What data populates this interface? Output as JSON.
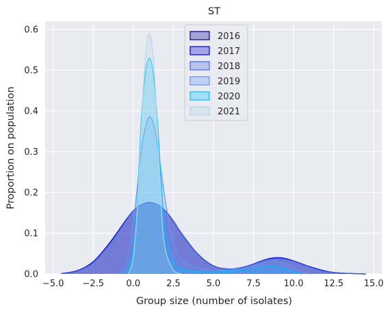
{
  "chart_data": {
    "type": "area",
    "title": "ST",
    "xlabel": "Group size (number of isolates)",
    "ylabel": "Proportion on population",
    "xlim": [
      -5.5,
      15.5
    ],
    "ylim": [
      0,
      0.62
    ],
    "xticks": [
      -5.0,
      -2.5,
      0.0,
      2.5,
      5.0,
      7.5,
      10.0,
      12.5,
      15.0
    ],
    "xtick_labels": [
      "−5.0",
      "−2.5",
      "0.0",
      "2.5",
      "5.0",
      "7.5",
      "10.0",
      "12.5",
      "15.0"
    ],
    "yticks": [
      0.0,
      0.1,
      0.2,
      0.3,
      0.4,
      0.5,
      0.6
    ],
    "ytick_labels": [
      "0.0",
      "0.1",
      "0.2",
      "0.3",
      "0.4",
      "0.5",
      "0.6"
    ],
    "grid": true,
    "legend_position": "top-center",
    "series": [
      {
        "name": "2016",
        "color": "#00008b",
        "x": [
          -4.5,
          -3.5,
          -2.5,
          -1.5,
          -0.5,
          0.0,
          0.5,
          1.0,
          1.5,
          2.0,
          2.5,
          3.0,
          4.0,
          5.0,
          6.0,
          7.0,
          8.0,
          8.5,
          9.0,
          9.5,
          10.0,
          11.0,
          12.0,
          13.0,
          14.5
        ],
        "y": [
          0.001,
          0.008,
          0.03,
          0.075,
          0.13,
          0.155,
          0.17,
          0.175,
          0.17,
          0.155,
          0.13,
          0.1,
          0.05,
          0.02,
          0.012,
          0.018,
          0.032,
          0.037,
          0.038,
          0.037,
          0.032,
          0.018,
          0.007,
          0.002,
          0.0
        ]
      },
      {
        "name": "2017",
        "color": "#0000cd",
        "x": [
          -4.5,
          -3.5,
          -2.5,
          -1.5,
          -0.5,
          0.0,
          0.5,
          1.0,
          1.5,
          2.0,
          2.5,
          3.0,
          4.0,
          5.0,
          6.0,
          7.0,
          8.0,
          8.5,
          9.0,
          9.5,
          10.0,
          11.0,
          12.0,
          13.0,
          14.5
        ],
        "y": [
          0.001,
          0.008,
          0.03,
          0.075,
          0.13,
          0.155,
          0.17,
          0.175,
          0.17,
          0.155,
          0.13,
          0.1,
          0.05,
          0.02,
          0.012,
          0.018,
          0.032,
          0.038,
          0.04,
          0.038,
          0.032,
          0.018,
          0.007,
          0.002,
          0.0
        ]
      },
      {
        "name": "2018",
        "color": "#4169e1",
        "x": [
          -4.5,
          -3.5,
          -2.5,
          -1.5,
          -0.5,
          0.0,
          0.5,
          1.0,
          1.5,
          2.0,
          2.5,
          3.0,
          4.0,
          5.0,
          6.0,
          7.0,
          8.0,
          8.5,
          9.0,
          9.5,
          10.0,
          11.0,
          12.0,
          13.0,
          14.5
        ],
        "y": [
          0.001,
          0.007,
          0.028,
          0.072,
          0.128,
          0.155,
          0.17,
          0.176,
          0.17,
          0.155,
          0.13,
          0.1,
          0.05,
          0.02,
          0.012,
          0.018,
          0.031,
          0.036,
          0.038,
          0.036,
          0.031,
          0.017,
          0.006,
          0.002,
          0.0
        ]
      },
      {
        "name": "2019",
        "color": "#6495ed",
        "x": [
          -1.0,
          -0.5,
          0.0,
          0.5,
          0.75,
          1.0,
          1.25,
          1.5,
          2.0,
          2.5,
          3.0,
          4.0,
          5.0,
          6.0,
          7.0,
          8.0,
          8.5,
          9.0,
          9.5,
          10.0,
          10.5,
          11.0
        ],
        "y": [
          0.0,
          0.02,
          0.13,
          0.3,
          0.36,
          0.385,
          0.37,
          0.32,
          0.18,
          0.08,
          0.035,
          0.015,
          0.01,
          0.01,
          0.015,
          0.025,
          0.03,
          0.03,
          0.025,
          0.015,
          0.005,
          0.0
        ]
      },
      {
        "name": "2020",
        "color": "#00bfff",
        "x": [
          -0.5,
          0.0,
          0.25,
          0.5,
          0.75,
          1.0,
          1.25,
          1.5,
          1.75,
          2.0,
          2.5,
          3.0,
          4.0,
          5.0,
          6.0,
          7.0,
          8.0,
          8.5,
          9.0,
          9.5,
          10.0,
          10.5
        ],
        "y": [
          0.0,
          0.06,
          0.18,
          0.38,
          0.49,
          0.53,
          0.49,
          0.38,
          0.22,
          0.1,
          0.03,
          0.012,
          0.006,
          0.005,
          0.006,
          0.01,
          0.017,
          0.02,
          0.018,
          0.012,
          0.005,
          0.0
        ]
      },
      {
        "name": "2021",
        "color": "#add8e6",
        "x": [
          -0.3,
          0.0,
          0.25,
          0.5,
          0.75,
          1.0,
          1.25,
          1.5,
          1.75,
          2.0,
          2.5,
          3.0
        ],
        "y": [
          0.0,
          0.04,
          0.16,
          0.36,
          0.53,
          0.59,
          0.53,
          0.36,
          0.16,
          0.06,
          0.01,
          0.0
        ]
      }
    ]
  }
}
